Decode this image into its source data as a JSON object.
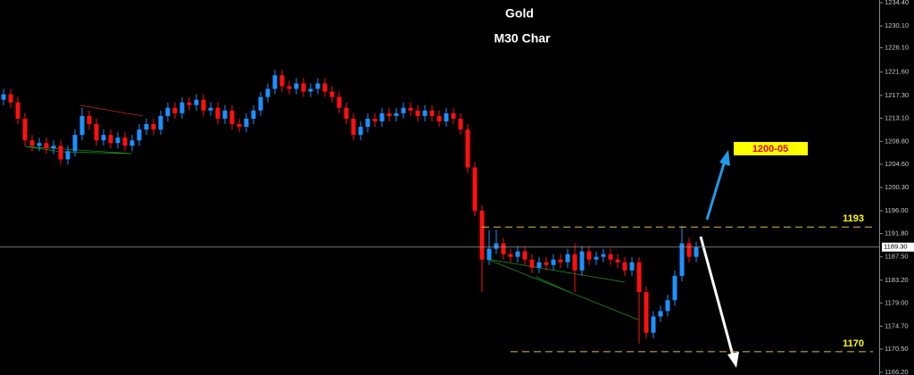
{
  "chart_data": {
    "type": "candlestick",
    "title": "Gold",
    "subtitle": "M30 Char",
    "bull_color": "#1e90ff",
    "bear_color": "#ff1010",
    "ylim": [
      1165.7,
      1234.9
    ],
    "yticks": [
      {
        "value": 1234.4,
        "label": "1234.40"
      },
      {
        "value": 1230.1,
        "label": "1230.10"
      },
      {
        "value": 1226.1,
        "label": "1226.10"
      },
      {
        "value": 1221.6,
        "label": "1221.60"
      },
      {
        "value": 1217.3,
        "label": "1217.30"
      },
      {
        "value": 1213.1,
        "label": "1213.10"
      },
      {
        "value": 1208.8,
        "label": "1208.80"
      },
      {
        "value": 1204.6,
        "label": "1204.60"
      },
      {
        "value": 1200.3,
        "label": "1200.30"
      },
      {
        "value": 1196,
        "label": "1196.00"
      },
      {
        "value": 1191.8,
        "label": "1191.80"
      },
      {
        "value": 1187.5,
        "label": "1187.50"
      },
      {
        "value": 1183.2,
        "label": "1183.20"
      },
      {
        "value": 1179,
        "label": "1179.00"
      },
      {
        "value": 1174.7,
        "label": "1174.70"
      },
      {
        "value": 1170.5,
        "label": "1170.50"
      },
      {
        "value": 1166.2,
        "label": "1166.20"
      }
    ],
    "current_price": {
      "value": 1189.3,
      "label": "1189.30"
    },
    "levels": [
      1193,
      1170
    ],
    "target_label": "1200-05",
    "open": [
      1216.5,
      1217.5,
      1216,
      1213,
      1209,
      1208,
      1208.5,
      1207.5,
      1208,
      1205.5,
      1207,
      1210,
      1213.5,
      1212,
      1209,
      1210,
      1208.5,
      1209.5,
      1208,
      1209,
      1211,
      1212,
      1211,
      1213.5,
      1215,
      1214,
      1216,
      1215.5,
      1216.5,
      1214.5,
      1215,
      1213,
      1214.5,
      1212,
      1211.5,
      1213,
      1214.5,
      1217,
      1218.5,
      1221,
      1219,
      1218.5,
      1219.5,
      1218,
      1218.5,
      1219.5,
      1218,
      1217,
      1215,
      1213,
      1210,
      1211.5,
      1213,
      1212.5,
      1214,
      1213.5,
      1214,
      1215,
      1214.5,
      1213.5,
      1214.5,
      1213.5,
      1212.5,
      1214,
      1213,
      1211,
      1204,
      1196,
      1187,
      1189,
      1190,
      1188,
      1187.5,
      1188.5,
      1187,
      1185.5,
      1186.5,
      1186,
      1187,
      1186.5,
      1188,
      1185,
      1188.5,
      1187,
      1187.5,
      1188,
      1187,
      1186.5,
      1185,
      1186.5,
      1181,
      1173.5,
      1176.5,
      1177.5,
      1179.5,
      1184,
      1190,
      1187.5
    ],
    "high": [
      1218.5,
      1218.5,
      1217,
      1214,
      1210,
      1209.5,
      1209.5,
      1209,
      1209,
      1208,
      1211,
      1215,
      1214.5,
      1213,
      1211,
      1211,
      1210.5,
      1210.5,
      1210,
      1212,
      1213,
      1213,
      1214.5,
      1216,
      1216,
      1217,
      1217,
      1217.5,
      1217.5,
      1216,
      1216,
      1215.5,
      1215.5,
      1213,
      1214,
      1215.5,
      1218,
      1219.5,
      1222,
      1222,
      1220,
      1220.5,
      1220.5,
      1219.5,
      1220.5,
      1220.5,
      1219,
      1218,
      1216,
      1214,
      1212.5,
      1214,
      1214,
      1215,
      1215,
      1215,
      1216,
      1216,
      1215.5,
      1215.5,
      1215.5,
      1214.5,
      1215,
      1215,
      1214,
      1212,
      1205,
      1197,
      1192.5,
      1192.5,
      1191,
      1189,
      1189.5,
      1189.5,
      1188,
      1187.5,
      1187.5,
      1188,
      1188,
      1189,
      1190,
      1189.5,
      1189.5,
      1188.5,
      1189,
      1189,
      1188,
      1187.5,
      1187.5,
      1187.5,
      1182,
      1177.5,
      1178.5,
      1180.5,
      1185,
      1193.2,
      1191,
      1190.3
    ],
    "low": [
      1215.5,
      1215,
      1212,
      1208,
      1207,
      1207,
      1206.5,
      1206.5,
      1204.5,
      1204.5,
      1206,
      1209,
      1211,
      1208,
      1208,
      1207.5,
      1207.5,
      1207,
      1207,
      1208,
      1210,
      1210,
      1210,
      1212.5,
      1213,
      1213,
      1214.5,
      1214.5,
      1213.5,
      1213.5,
      1212,
      1212,
      1211,
      1210.5,
      1210.5,
      1212,
      1213.5,
      1216,
      1217.5,
      1218,
      1217.5,
      1217.5,
      1217,
      1217,
      1217.5,
      1217,
      1216,
      1214,
      1212,
      1209,
      1209,
      1210.5,
      1211.5,
      1211.5,
      1212.5,
      1212.5,
      1213,
      1213.5,
      1212.5,
      1212.5,
      1212.5,
      1211.5,
      1211.5,
      1212,
      1210,
      1203,
      1195,
      1181,
      1186,
      1188,
      1187,
      1186.5,
      1186.5,
      1186,
      1184.5,
      1184.5,
      1185,
      1185,
      1185.5,
      1185.5,
      1181,
      1184,
      1186,
      1186,
      1186.5,
      1186,
      1185.5,
      1184,
      1184,
      1171.5,
      1172.5,
      1172.5,
      1175.5,
      1176.5,
      1178.5,
      1183,
      1186.5,
      1186.5
    ],
    "close": [
      1217.5,
      1216,
      1213,
      1209,
      1208,
      1208.5,
      1207.5,
      1208,
      1205.5,
      1207,
      1210,
      1213.5,
      1212,
      1209,
      1210,
      1208.5,
      1209.5,
      1208,
      1209,
      1211,
      1212,
      1211,
      1213.5,
      1215,
      1214,
      1216,
      1215.5,
      1216.5,
      1214.5,
      1215,
      1213,
      1214.5,
      1212,
      1211.5,
      1213,
      1214.5,
      1217,
      1218.5,
      1221,
      1219,
      1218.5,
      1219.5,
      1218,
      1218.5,
      1219.5,
      1218,
      1217,
      1215,
      1213,
      1210,
      1211.5,
      1213,
      1212.5,
      1214,
      1213.5,
      1214,
      1215,
      1214.5,
      1213.5,
      1214.5,
      1213.5,
      1212.5,
      1214,
      1213,
      1211,
      1204,
      1196,
      1187,
      1189,
      1190,
      1188,
      1187.5,
      1188.5,
      1187,
      1185.5,
      1186.5,
      1186,
      1187,
      1186.5,
      1188,
      1185,
      1188.5,
      1187,
      1187.5,
      1188,
      1187,
      1186.5,
      1185,
      1186.5,
      1181,
      1173.5,
      1176.5,
      1177.5,
      1179.5,
      1184,
      1190,
      1187.5,
      1189.3
    ]
  }
}
